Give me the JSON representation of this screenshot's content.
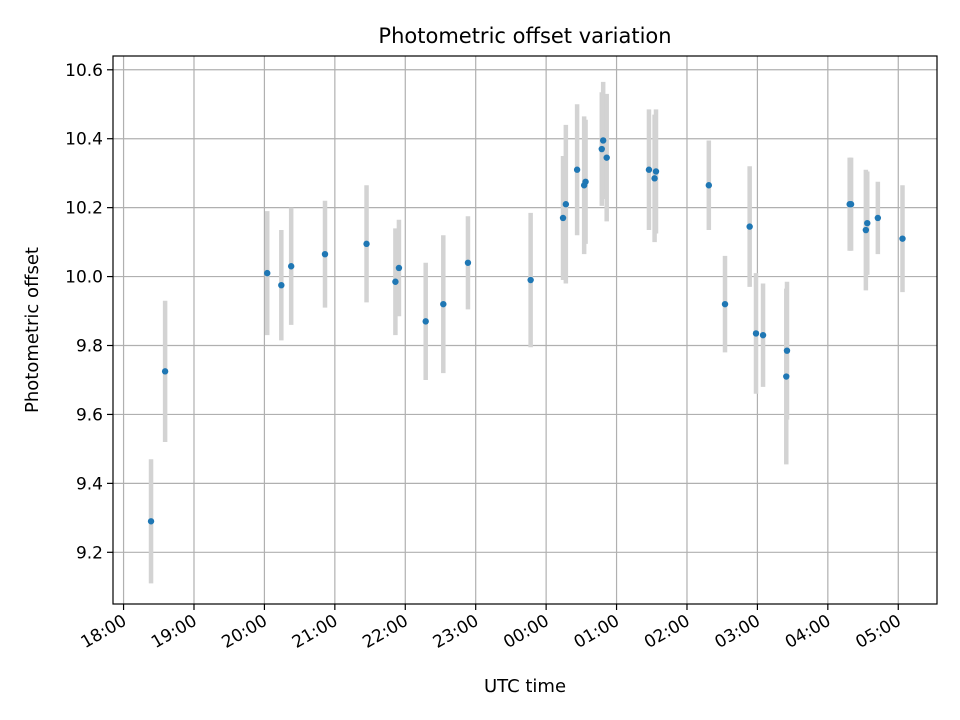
{
  "chart_data": {
    "type": "scatter",
    "title": "Photometric offset variation",
    "xlabel": "UTC time",
    "ylabel": "Photometric offset",
    "grid": true,
    "xlim_hours": [
      -0.15,
      11.55
    ],
    "ylim": [
      9.05,
      10.64
    ],
    "x_ticks": [
      {
        "value": 0,
        "label": "18:00"
      },
      {
        "value": 1,
        "label": "19:00"
      },
      {
        "value": 2,
        "label": "20:00"
      },
      {
        "value": 3,
        "label": "21:00"
      },
      {
        "value": 4,
        "label": "22:00"
      },
      {
        "value": 5,
        "label": "23:00"
      },
      {
        "value": 6,
        "label": "00:00"
      },
      {
        "value": 7,
        "label": "01:00"
      },
      {
        "value": 8,
        "label": "02:00"
      },
      {
        "value": 9,
        "label": "03:00"
      },
      {
        "value": 10,
        "label": "04:00"
      },
      {
        "value": 11,
        "label": "05:00"
      }
    ],
    "y_ticks": [
      {
        "value": 9.2,
        "label": "9.2"
      },
      {
        "value": 9.4,
        "label": "9.4"
      },
      {
        "value": 9.6,
        "label": "9.6"
      },
      {
        "value": 9.8,
        "label": "9.8"
      },
      {
        "value": 10.0,
        "label": "10.0"
      },
      {
        "value": 10.2,
        "label": "10.2"
      },
      {
        "value": 10.4,
        "label": "10.4"
      },
      {
        "value": 10.6,
        "label": "10.6"
      }
    ],
    "colors": {
      "point": "#1f77b4",
      "errorbar": "#d3d3d3",
      "grid": "#b0b0b0",
      "axis": "#000000"
    },
    "series": [
      {
        "name": "offset",
        "x_hours": [
          0.39,
          0.59,
          2.04,
          2.24,
          2.38,
          2.86,
          3.45,
          3.86,
          3.91,
          4.29,
          4.54,
          4.89,
          5.78,
          6.24,
          6.28,
          6.44,
          6.54,
          6.56,
          6.79,
          6.81,
          6.86,
          7.46,
          7.54,
          7.56,
          8.31,
          8.54,
          8.89,
          8.98,
          9.08,
          9.41,
          9.42,
          10.31,
          10.33,
          10.54,
          10.56,
          10.71,
          11.06
        ],
        "y": [
          9.29,
          9.725,
          10.01,
          9.975,
          10.03,
          10.065,
          10.095,
          9.985,
          10.025,
          9.87,
          9.92,
          10.04,
          9.99,
          10.17,
          10.21,
          10.31,
          10.265,
          10.275,
          10.37,
          10.395,
          10.345,
          10.31,
          10.285,
          10.305,
          10.265,
          9.92,
          10.145,
          9.835,
          9.83,
          9.71,
          9.785,
          10.21,
          10.21,
          10.135,
          10.155,
          10.17,
          10.11
        ],
        "err": [
          0.18,
          0.205,
          0.18,
          0.16,
          0.17,
          0.155,
          0.17,
          0.155,
          0.14,
          0.17,
          0.2,
          0.135,
          0.195,
          0.18,
          0.23,
          0.19,
          0.2,
          0.18,
          0.165,
          0.17,
          0.185,
          0.175,
          0.185,
          0.18,
          0.13,
          0.14,
          0.175,
          0.175,
          0.15,
          0.255,
          0.2,
          0.135,
          0.135,
          0.175,
          0.15,
          0.105,
          0.155
        ]
      }
    ]
  }
}
